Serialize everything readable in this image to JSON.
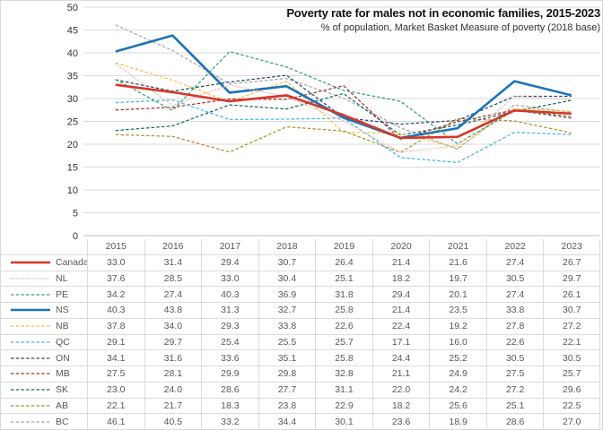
{
  "chart": {
    "title": "Poverty rate for males not in economic families, 2015-2023",
    "subtitle": "% of population, Market Basket Measure of poverty (2018 base)"
  },
  "chart_data": {
    "type": "line",
    "categories": [
      "2015",
      "2016",
      "2017",
      "2018",
      "2019",
      "2020",
      "2021",
      "2022",
      "2023"
    ],
    "title": "Poverty rate for males not in economic families, 2015-2023",
    "subtitle": "% of population, Market Basket Measure of poverty (2018 base)",
    "xlabel": "",
    "ylabel": "% of population",
    "ylim": [
      0,
      50
    ],
    "ytick_step": 5,
    "grid": true,
    "legend_position": "table-left",
    "colors": {
      "grid": "#dadada",
      "axis": "#bfbfbf",
      "table_line": "#dcdcdc",
      "text": "#595959"
    },
    "series": [
      {
        "name": "Canada",
        "color": "#d7362b",
        "style": "solid",
        "thick": true,
        "values": [
          33.0,
          31.4,
          29.4,
          30.7,
          26.4,
          21.4,
          21.6,
          27.4,
          26.7
        ]
      },
      {
        "name": "NL",
        "color": "#e3bdb6",
        "style": "dotted",
        "thick": false,
        "values": [
          37.6,
          28.5,
          33.0,
          30.4,
          25.1,
          18.2,
          19.7,
          30.5,
          29.7
        ]
      },
      {
        "name": "PE",
        "color": "#36a275",
        "style": "dashed",
        "thick": false,
        "values": [
          34.2,
          27.4,
          40.3,
          36.9,
          31.8,
          29.4,
          20.1,
          27.4,
          26.1
        ]
      },
      {
        "name": "NS",
        "color": "#1e73b5",
        "style": "solid",
        "thick": true,
        "values": [
          40.3,
          43.8,
          31.3,
          32.7,
          25.8,
          21.4,
          23.5,
          33.8,
          30.7
        ]
      },
      {
        "name": "NB",
        "color": "#f5c142",
        "style": "dashed",
        "thick": false,
        "values": [
          37.8,
          34.0,
          29.3,
          33.8,
          22.6,
          22.4,
          19.2,
          27.8,
          27.2
        ]
      },
      {
        "name": "QC",
        "color": "#41b6e6",
        "style": "dashed",
        "thick": false,
        "values": [
          29.1,
          29.7,
          25.4,
          25.5,
          25.7,
          17.1,
          16.0,
          22.6,
          22.1
        ]
      },
      {
        "name": "ON",
        "color": "#264a73",
        "style": "dashed",
        "thick": false,
        "values": [
          34.1,
          31.6,
          33.6,
          35.1,
          25.8,
          24.4,
          25.2,
          30.5,
          30.5
        ]
      },
      {
        "name": "MB",
        "color": "#a93226",
        "style": "dashed",
        "thick": false,
        "values": [
          27.5,
          28.1,
          29.9,
          29.8,
          32.8,
          21.1,
          24.9,
          27.5,
          25.7
        ]
      },
      {
        "name": "SK",
        "color": "#176b5d",
        "style": "dashed",
        "thick": false,
        "values": [
          23.0,
          24.0,
          28.6,
          27.7,
          31.1,
          22.0,
          24.2,
          27.2,
          29.6
        ]
      },
      {
        "name": "AB",
        "color": "#b18f2c",
        "style": "dashed",
        "thick": false,
        "values": [
          22.1,
          21.7,
          18.3,
          23.8,
          22.9,
          18.2,
          25.6,
          25.1,
          22.5
        ]
      },
      {
        "name": "BC",
        "color": "#a8a8a8",
        "style": "dashed",
        "thick": false,
        "values": [
          46.1,
          40.5,
          33.2,
          34.4,
          30.1,
          23.6,
          18.9,
          28.6,
          27.0
        ]
      }
    ]
  }
}
